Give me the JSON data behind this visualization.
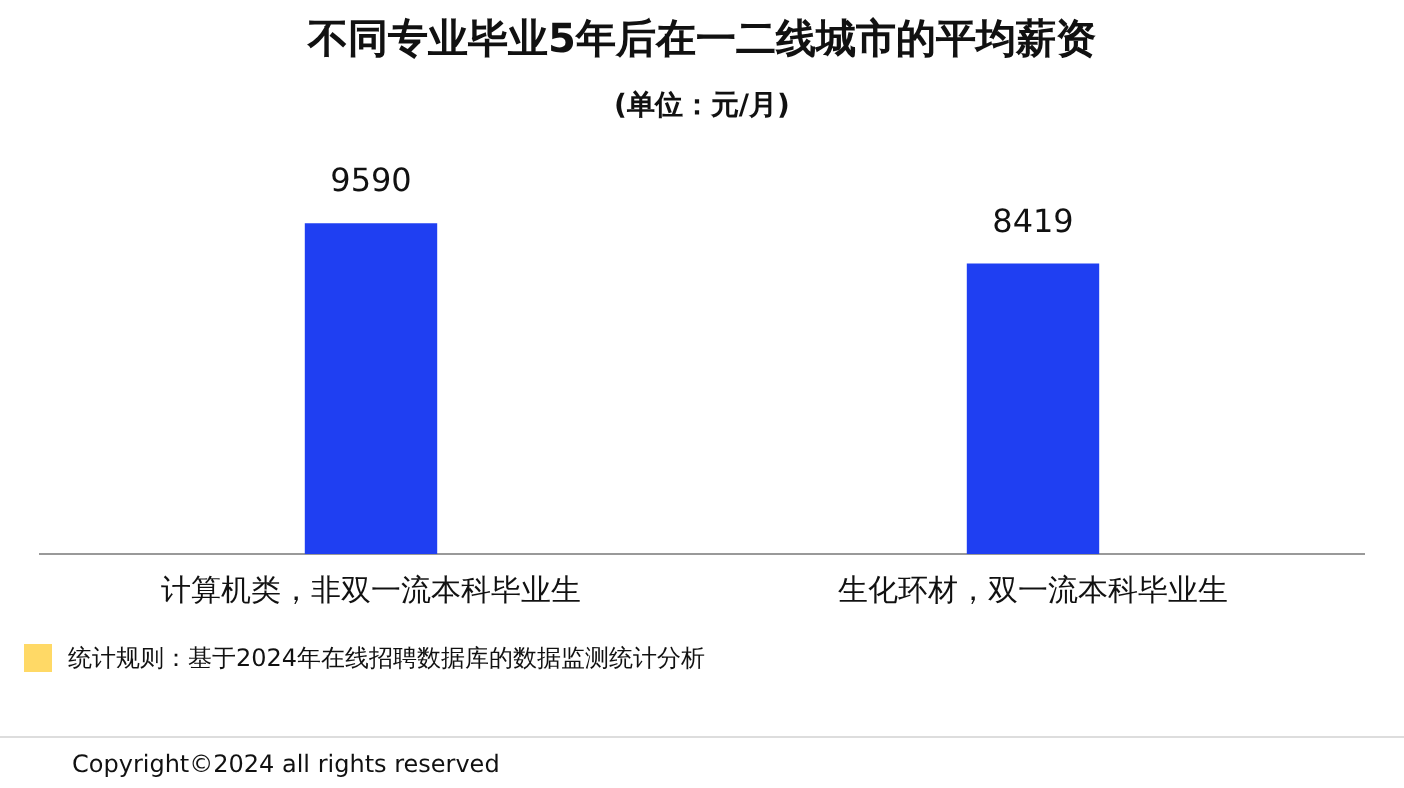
{
  "chart_data": {
    "type": "bar",
    "title": "不同专业毕业5年后在一二线城市的平均薪资",
    "subtitle": "(单位：元/月)",
    "categories": [
      "计算机类，非双一流本科毕业生",
      "生化环材，双一流本科毕业生"
    ],
    "values": [
      9590,
      8419
    ],
    "color": "#1f3ff2",
    "data_labels": true,
    "grid": false,
    "legend": false,
    "annotations": [
      "统计规则：基于2024年在线招聘数据库的数据监测统计分析",
      "Copyright©2024 all rights reserved"
    ]
  }
}
